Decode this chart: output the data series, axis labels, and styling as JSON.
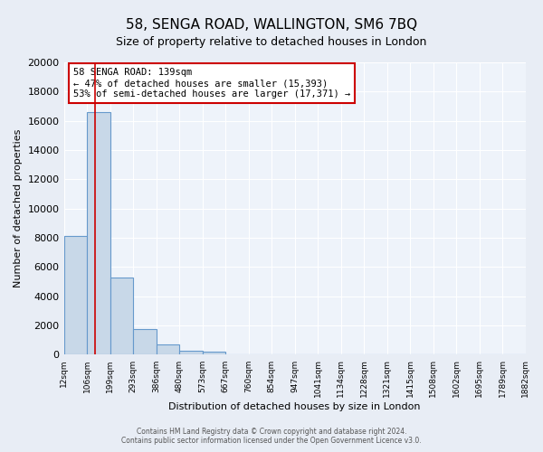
{
  "title": "58, SENGA ROAD, WALLINGTON, SM6 7BQ",
  "subtitle": "Size of property relative to detached houses in London",
  "xlabel": "Distribution of detached houses by size in London",
  "ylabel": "Number of detached properties",
  "bar_edges": [
    12,
    106,
    199,
    293,
    386,
    480,
    573,
    667,
    760,
    854,
    947,
    1041,
    1134,
    1228,
    1321,
    1415,
    1508,
    1602,
    1695,
    1789,
    1882
  ],
  "bar_heights": [
    8100,
    16600,
    5300,
    1750,
    700,
    275,
    200,
    0,
    0,
    0,
    0,
    0,
    0,
    0,
    0,
    0,
    0,
    0,
    0,
    0
  ],
  "bar_color": "#c8d8e8",
  "bar_edge_color": "#6699cc",
  "bar_linewidth": 0.8,
  "vline_x": 139,
  "vline_color": "#cc0000",
  "vline_linewidth": 1.2,
  "annotation_line1": "58 SENGA ROAD: 139sqm",
  "annotation_line2": "← 47% of detached houses are smaller (15,393)",
  "annotation_line3": "53% of semi-detached houses are larger (17,371) →",
  "annotation_box_color": "#ffffff",
  "annotation_box_edgecolor": "#cc0000",
  "ylim": [
    0,
    20000
  ],
  "yticks": [
    0,
    2000,
    4000,
    6000,
    8000,
    10000,
    12000,
    14000,
    16000,
    18000,
    20000
  ],
  "tick_labels": [
    "12sqm",
    "106sqm",
    "199sqm",
    "293sqm",
    "386sqm",
    "480sqm",
    "573sqm",
    "667sqm",
    "760sqm",
    "854sqm",
    "947sqm",
    "1041sqm",
    "1134sqm",
    "1228sqm",
    "1321sqm",
    "1415sqm",
    "1508sqm",
    "1602sqm",
    "1695sqm",
    "1789sqm",
    "1882sqm"
  ],
  "background_color": "#e8edf5",
  "plot_background_color": "#eef3fa",
  "grid_color": "#ffffff",
  "title_fontsize": 11,
  "subtitle_fontsize": 9,
  "footer_line1": "Contains HM Land Registry data © Crown copyright and database right 2024.",
  "footer_line2": "Contains public sector information licensed under the Open Government Licence v3.0."
}
